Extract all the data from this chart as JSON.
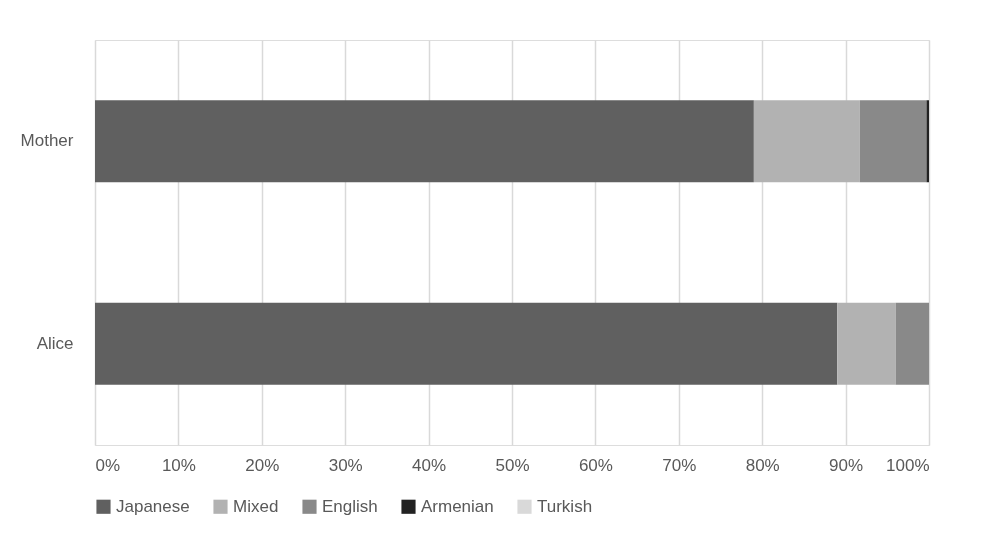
{
  "chart_data": {
    "type": "bar",
    "orientation": "horizontal",
    "stacked": true,
    "categories": [
      "Mother",
      "Alice"
    ],
    "series": [
      {
        "name": "Japanese",
        "color": "#606060",
        "values": [
          79,
          89
        ]
      },
      {
        "name": "Mixed",
        "color": "#b2b2b2",
        "values": [
          12.7,
          7
        ]
      },
      {
        "name": "English",
        "color": "#898989",
        "values": [
          8,
          4
        ]
      },
      {
        "name": "Armenian",
        "color": "#222222",
        "values": [
          0.3,
          0
        ]
      },
      {
        "name": "Turkish",
        "color": "#d9d9d9",
        "values": [
          0,
          0
        ]
      }
    ],
    "xlim": [
      0,
      100
    ],
    "xticks": [
      {
        "value": 0,
        "label": "0%"
      },
      {
        "value": 10,
        "label": "10%"
      },
      {
        "value": 20,
        "label": "20%"
      },
      {
        "value": 30,
        "label": "30%"
      },
      {
        "value": 40,
        "label": "40%"
      },
      {
        "value": 50,
        "label": "50%"
      },
      {
        "value": 60,
        "label": "60%"
      },
      {
        "value": 70,
        "label": "70%"
      },
      {
        "value": 80,
        "label": "80%"
      },
      {
        "value": 90,
        "label": "90%"
      },
      {
        "value": 100,
        "label": "100%"
      }
    ],
    "grid": "x",
    "legend": "bottom"
  }
}
